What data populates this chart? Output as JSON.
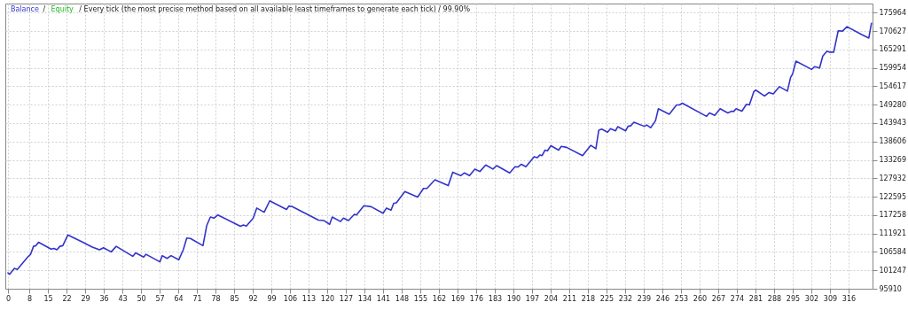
{
  "chart_data": {
    "type": "line",
    "annotations": [
      "/",
      "/ Every tick (the most precise method based on all available least timeframes to generate each tick) / 99.90%"
    ],
    "legend": "top left",
    "grid": true,
    "line_style": "solid",
    "marker": "none",
    "xlim": [
      -1,
      325
    ],
    "ylim": [
      95910,
      178600
    ],
    "xticks": [
      0,
      8,
      15,
      22,
      29,
      36,
      43,
      50,
      57,
      64,
      71,
      78,
      85,
      92,
      99,
      106,
      113,
      120,
      127,
      134,
      141,
      148,
      155,
      162,
      169,
      176,
      183,
      190,
      197,
      204,
      211,
      218,
      225,
      232,
      239,
      246,
      253,
      260,
      267,
      274,
      281,
      288,
      295,
      302,
      309,
      316
    ],
    "yticks": [
      95910,
      101247,
      106584,
      111921,
      117258,
      122595,
      127932,
      133269,
      138606,
      143943,
      149280,
      154617,
      159954,
      165291,
      170627,
      175964
    ],
    "series": [
      {
        "name": "Balance",
        "color": "#3333cc",
        "x": [
          0,
          0.6,
          2.4,
          3.5,
          7.4,
          8.5,
          9.6,
          10.5,
          11.5,
          16.2,
          17.3,
          18.4,
          19.5,
          20.6,
          22.5,
          27.8,
          31.7,
          34.4,
          35.9,
          38.8,
          40.7,
          46.9,
          48,
          51,
          51.9,
          57.1,
          58,
          59.8,
          61.3,
          64.2,
          65.9,
          67.2,
          68.6,
          73.3,
          74.7,
          76.1,
          77.5,
          78.9,
          87.4,
          88.5,
          89.6,
          92.2,
          93.5,
          96.3,
          98.4,
          104.7,
          105.6,
          106.7,
          116.7,
          118.7,
          120.9,
          121.9,
          125,
          126.1,
          128,
          130.2,
          131,
          133.8,
          136.5,
          141,
          142.3,
          144,
          145,
          146,
          149.2,
          154,
          156.2,
          157.5,
          160.5,
          165.5,
          167.2,
          170.2,
          171.6,
          173.5,
          175.5,
          177.4,
          179.6,
          182.3,
          183.7,
          188.6,
          190.6,
          191.7,
          193,
          194.7,
          197.8,
          198.9,
          200,
          200.8,
          201.9,
          202.8,
          204.1,
          207,
          208,
          210,
          216,
          219.1,
          221,
          222.1,
          223.2,
          225.4,
          226.5,
          228.4,
          229.2,
          232.2,
          233.1,
          234.2,
          235.3,
          239.2,
          240.1,
          241.6,
          243.4,
          244.5,
          248.6,
          251.3,
          252.4,
          253.5,
          262.6,
          263.7,
          265.7,
          267.7,
          270.6,
          272.1,
          272.8,
          273.7,
          275.9,
          277.6,
          278.7,
          280.4,
          281.1,
          284.4,
          286.1,
          287.7,
          290,
          293,
          294.2,
          295,
          296.2,
          302.1,
          303.2,
          305.1,
          306.3,
          307.9,
          308.9,
          310.4,
          312.1,
          313.7,
          315.4,
          320.9,
          323.6,
          324.6
        ],
        "values": [
          100500,
          100100,
          101800,
          101500,
          105100,
          105900,
          108200,
          108400,
          109400,
          107400,
          107600,
          107200,
          108200,
          108400,
          111500,
          109500,
          108000,
          107200,
          107800,
          106600,
          108200,
          105300,
          106300,
          105100,
          105900,
          103700,
          105500,
          104700,
          105500,
          104300,
          107200,
          110600,
          110500,
          108400,
          114200,
          116700,
          116400,
          117300,
          114000,
          114400,
          114100,
          116400,
          119300,
          118100,
          121400,
          118900,
          119900,
          119800,
          115800,
          115700,
          114600,
          116700,
          115400,
          116400,
          115700,
          117500,
          117300,
          120000,
          119700,
          117800,
          119300,
          118700,
          120700,
          120800,
          124100,
          122500,
          125000,
          125000,
          127500,
          125800,
          129700,
          128700,
          129500,
          128700,
          130600,
          129900,
          131800,
          130600,
          131600,
          129500,
          131300,
          131200,
          132000,
          131300,
          134200,
          133900,
          134700,
          134500,
          136100,
          135900,
          137400,
          136100,
          137200,
          136900,
          134500,
          137500,
          136500,
          141900,
          142200,
          141300,
          142300,
          141700,
          142900,
          141700,
          143000,
          143200,
          144200,
          143000,
          143400,
          142600,
          144600,
          148100,
          146500,
          149200,
          149200,
          149700,
          145900,
          146900,
          146200,
          148100,
          146900,
          147400,
          147300,
          148100,
          147400,
          149400,
          149200,
          153100,
          153500,
          151800,
          152800,
          152400,
          154500,
          153200,
          157200,
          158300,
          161900,
          159500,
          160300,
          159900,
          163400,
          164800,
          164500,
          164500,
          170700,
          170600,
          171900,
          169600,
          168600,
          172900
        ]
      },
      {
        "name": "Equity",
        "color": "#22bb22"
      }
    ]
  }
}
